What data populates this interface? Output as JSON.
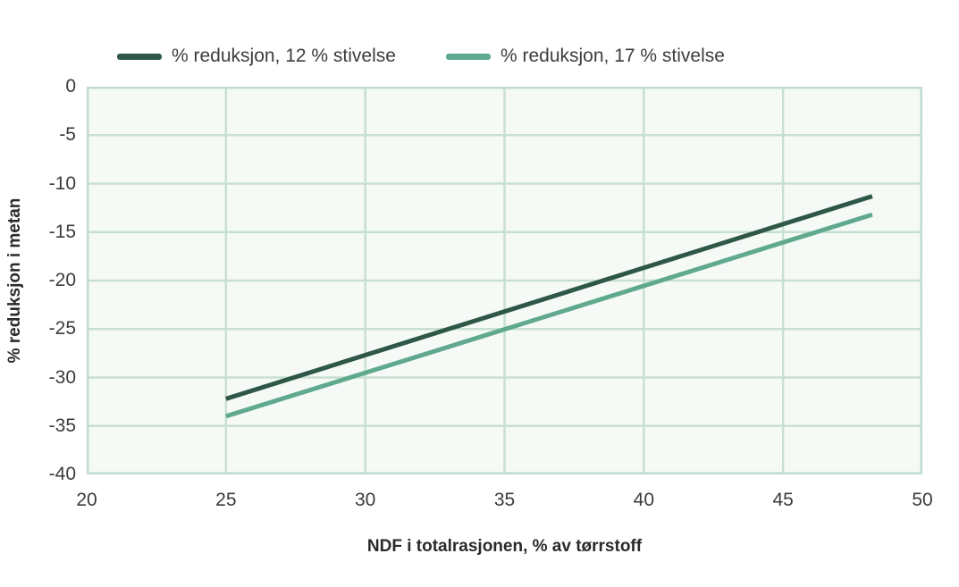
{
  "chart_data": {
    "type": "line",
    "title": "",
    "xlabel": "NDF i totalrasjonen, % av tørrstoff",
    "ylabel": "% reduksjon i metan",
    "xlim": [
      20,
      50
    ],
    "ylim": [
      -40,
      0
    ],
    "xticks": [
      20,
      25,
      30,
      35,
      40,
      45,
      50
    ],
    "yticks": [
      0,
      -5,
      -10,
      -15,
      -20,
      -25,
      -30,
      -35,
      -40
    ],
    "grid": true,
    "legend_position": "top",
    "series": [
      {
        "name": "% reduksjon, 12 % stivelse",
        "color": "#2e5747",
        "points": [
          [
            25,
            -32.2
          ],
          [
            48.2,
            -11.3
          ]
        ]
      },
      {
        "name": "% reduksjon, 17 % stivelse",
        "color": "#5fa98e",
        "points": [
          [
            25,
            -34.0
          ],
          [
            48.2,
            -13.2
          ]
        ]
      }
    ],
    "colors": {
      "plot_background": "#f6faf7",
      "gridline": "#c8dfd4",
      "border": "#c2dbcf",
      "tick_text": "#3b3b3b",
      "axis_title_text": "#2a2a2a",
      "legend_text": "#3d3d3d"
    }
  }
}
